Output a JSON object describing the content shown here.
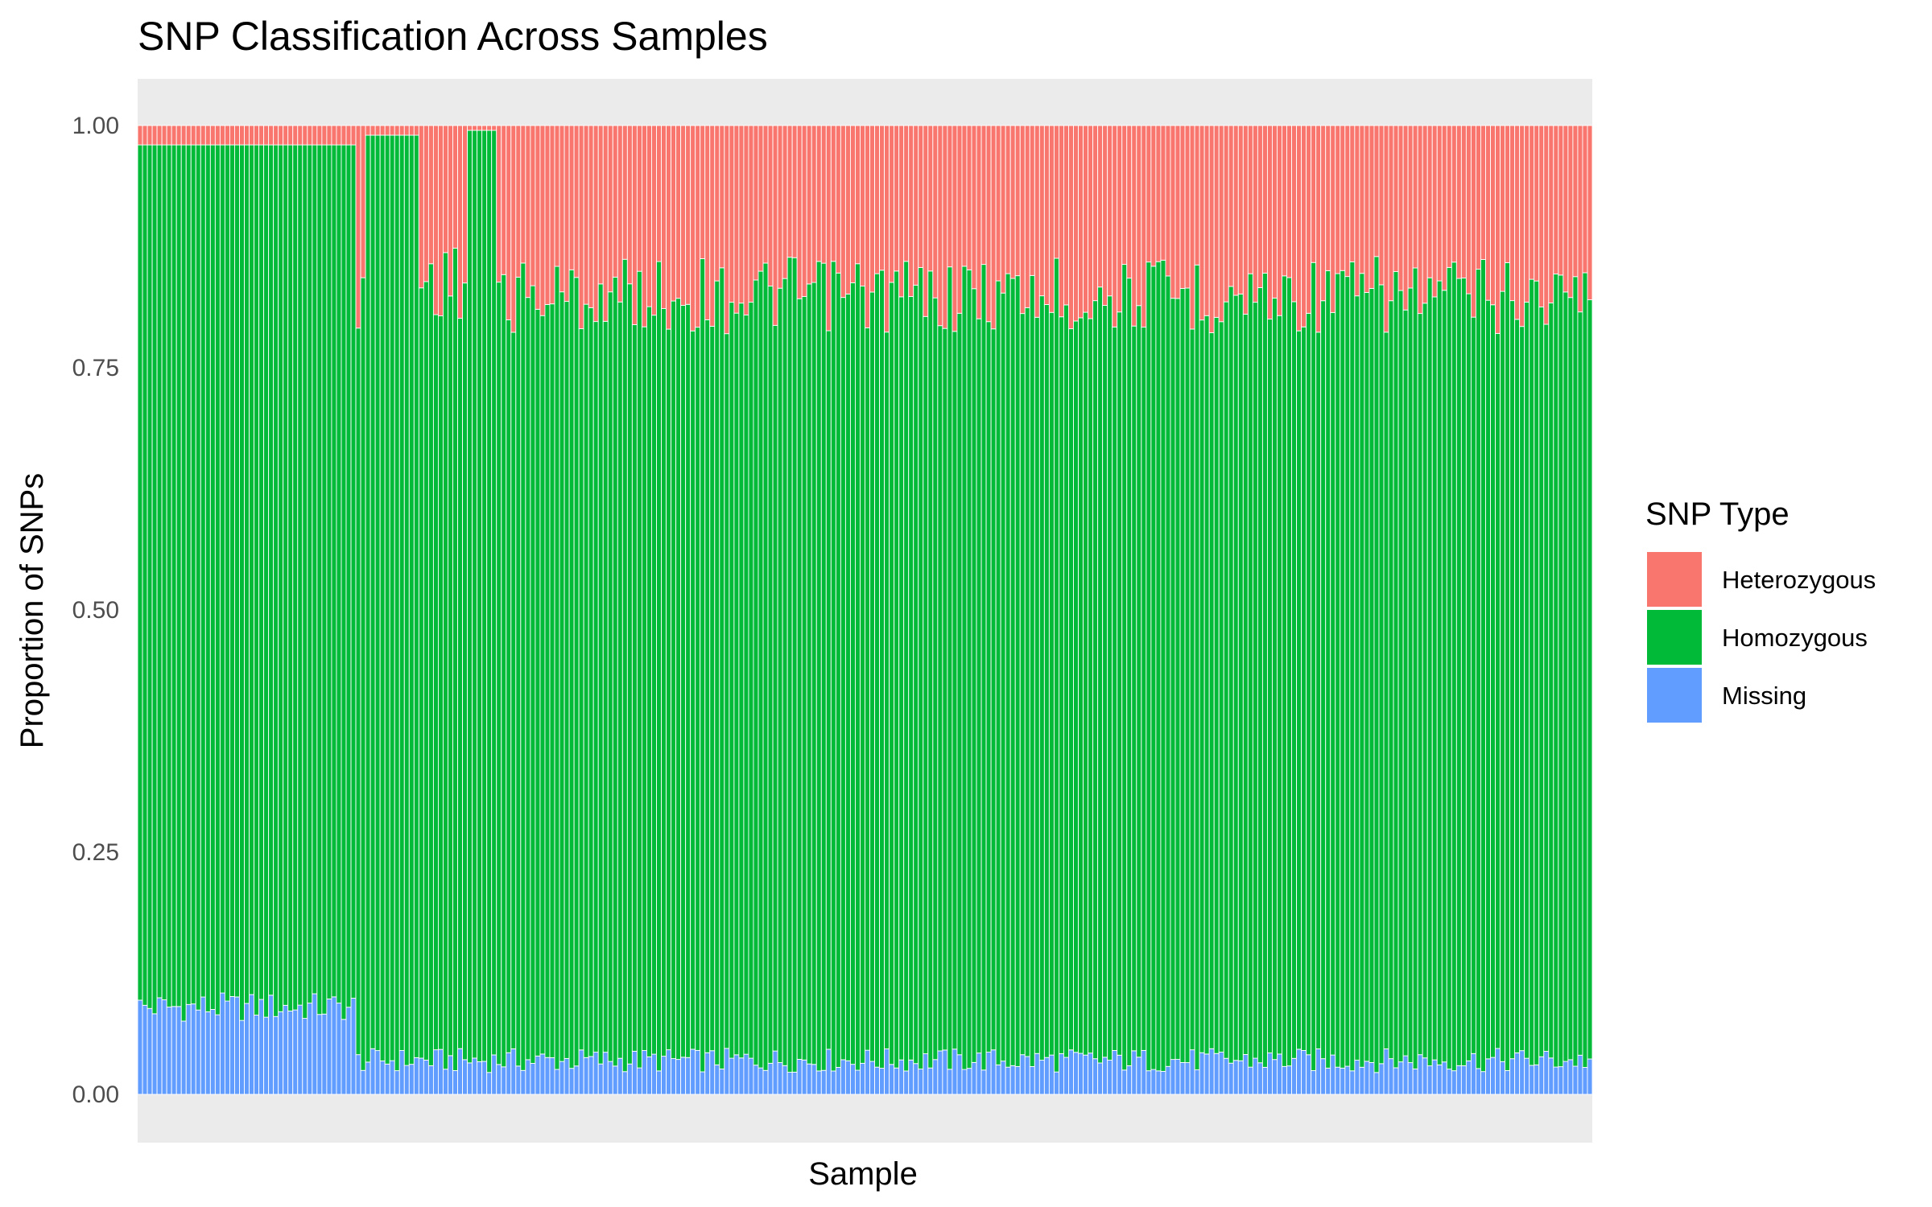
{
  "chart_data": {
    "type": "bar",
    "stacked": true,
    "title": "SNP Classification Across Samples",
    "xlabel": "Sample",
    "ylabel": "Proportion of SNPs",
    "ylim": [
      0,
      1
    ],
    "y_ticks": [
      0.0,
      0.25,
      0.5,
      0.75,
      1.0
    ],
    "y_tick_labels": [
      "0.00",
      "0.25",
      "0.50",
      "0.75",
      "1.00"
    ],
    "x_tick_labels_shown": false,
    "grid": false,
    "legend": {
      "title": "SNP Type",
      "position": "right",
      "entries": [
        "Heterozygous",
        "Homozygous",
        "Missing"
      ]
    },
    "colors": {
      "Heterozygous": "#F8766D",
      "Homozygous": "#00BA38",
      "Missing": "#619CFF",
      "panel": "#EBEBEB",
      "bar_border": "#FFFFFF"
    },
    "sample_count": 300,
    "stack_order_bottom_to_top": [
      "Missing",
      "Homozygous",
      "Heterozygous"
    ],
    "series": [
      {
        "name": "Missing",
        "values_by_sample_group": [
          {
            "samples": "1-45",
            "approx_value": 0.09
          },
          {
            "samples": "46-300",
            "approx_value": 0.035
          }
        ]
      },
      {
        "name": "Homozygous",
        "values_by_sample_group": [
          {
            "samples": "1-45",
            "approx_value": 0.89
          },
          {
            "samples": "46-47",
            "approx_value": 0.78
          },
          {
            "samples": "48-58",
            "approx_value": 0.955
          },
          {
            "samples": "59-68",
            "approx_value": 0.8
          },
          {
            "samples": "69-74",
            "approx_value": 0.96
          },
          {
            "samples": "75-300",
            "approx_value": 0.79
          }
        ]
      },
      {
        "name": "Heterozygous",
        "values_by_sample_group": [
          {
            "samples": "1-45",
            "approx_value": 0.02
          },
          {
            "samples": "46-47",
            "approx_value": 0.19
          },
          {
            "samples": "48-58",
            "approx_value": 0.01
          },
          {
            "samples": "59-68",
            "approx_value": 0.16
          },
          {
            "samples": "69-74",
            "approx_value": 0.005
          },
          {
            "samples": "75-300",
            "approx_value": 0.175
          }
        ]
      }
    ]
  }
}
